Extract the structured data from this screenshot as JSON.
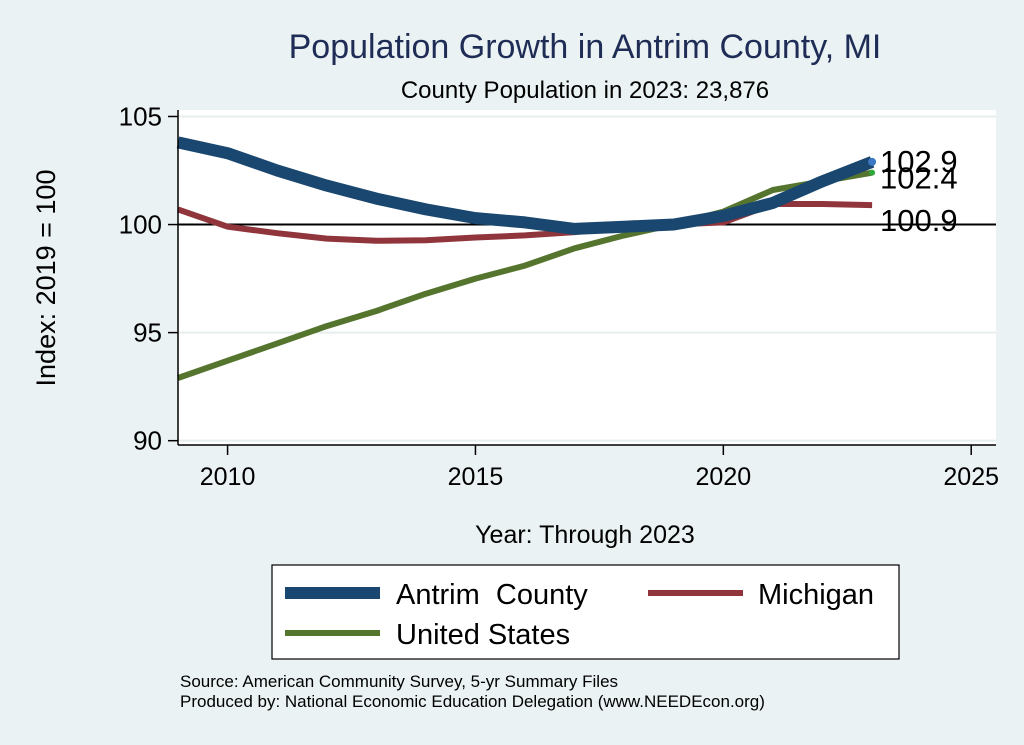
{
  "chart_data": {
    "type": "line",
    "title": "Population Growth in Antrim County, MI",
    "subtitle": "County Population in 2023: 23,876",
    "xlabel": "Year: Through 2023",
    "ylabel": "Index: 2019 = 100",
    "xlim": [
      2009,
      2025.5
    ],
    "ylim": [
      89.8,
      105.3
    ],
    "xticks": [
      2010,
      2015,
      2020,
      2025
    ],
    "yticks": [
      90,
      95,
      100,
      105
    ],
    "reference_line": 100,
    "grid": true,
    "legend_position": "bottom",
    "x": [
      2009,
      2010,
      2011,
      2012,
      2013,
      2014,
      2015,
      2016,
      2017,
      2018,
      2019,
      2020,
      2021,
      2022,
      2023
    ],
    "series": [
      {
        "name": "Antrim  County",
        "color": "#1a476f",
        "values": [
          103.8,
          103.3,
          102.5,
          101.8,
          101.2,
          100.7,
          100.3,
          100.1,
          99.8,
          99.9,
          100.0,
          100.4,
          101.0,
          102.0,
          102.9
        ],
        "end_label": "102.9"
      },
      {
        "name": "Michigan",
        "color": "#90353b",
        "values": [
          100.7,
          99.9,
          99.6,
          99.35,
          99.25,
          99.27,
          99.4,
          99.5,
          99.65,
          99.9,
          100.0,
          100.1,
          100.95,
          100.95,
          100.9
        ],
        "end_label": "100.9"
      },
      {
        "name": "United States",
        "color": "#55752f",
        "values": [
          92.9,
          93.7,
          94.5,
          95.3,
          96.0,
          96.8,
          97.5,
          98.1,
          98.9,
          99.5,
          100.0,
          100.6,
          101.6,
          102.0,
          102.4
        ],
        "end_label": "102.4"
      }
    ]
  },
  "footer": {
    "source": "Source: American Community Survey, 5-yr Summary Files",
    "produced": "Produced by: National Economic Education Delegation (www.NEEDEcon.org)"
  }
}
